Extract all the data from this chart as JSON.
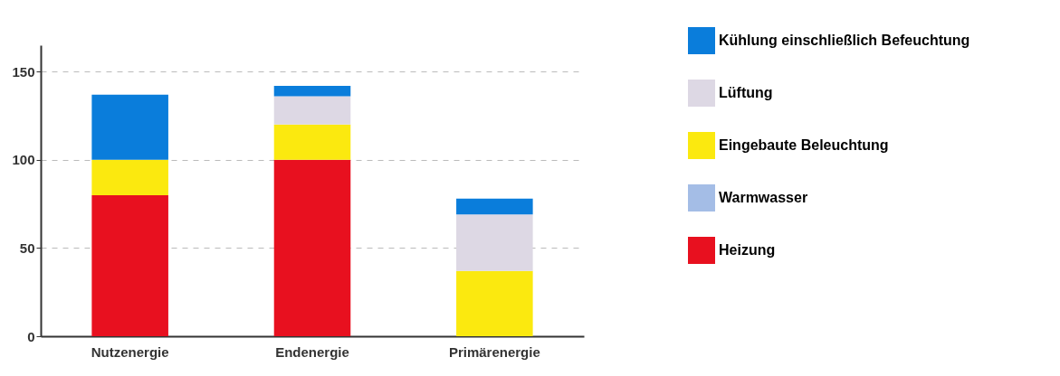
{
  "chart_data": {
    "type": "bar",
    "stacked": true,
    "categories": [
      "Nutzenergie",
      "Endenergie",
      "Primärenergie"
    ],
    "series": [
      {
        "name": "Heizung",
        "color": "#e8101f",
        "values": [
          80,
          100,
          0
        ]
      },
      {
        "name": "Warmwasser",
        "color": "#a4bde6",
        "values": [
          0,
          0,
          0
        ]
      },
      {
        "name": "Eingebaute Beleuchtung",
        "color": "#fbe90f",
        "values": [
          20,
          20,
          37
        ]
      },
      {
        "name": "Lüftung",
        "color": "#ddd8e4",
        "values": [
          0,
          16,
          32
        ]
      },
      {
        "name": "Kühlung einschließlich Befeuchtung",
        "color": "#0a7ddb",
        "values": [
          37,
          6,
          9
        ]
      }
    ],
    "ylim": [
      0,
      165
    ],
    "yticks": [
      0,
      50,
      100,
      150
    ],
    "grid": "y",
    "legend": "right"
  }
}
